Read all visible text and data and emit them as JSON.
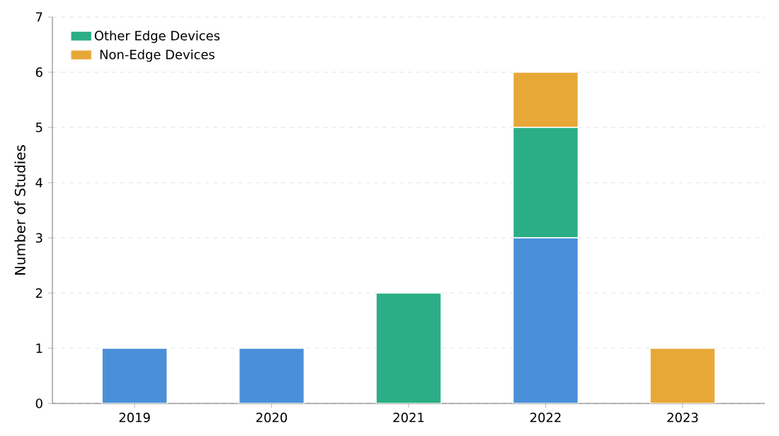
{
  "chart_data": {
    "type": "bar",
    "stacked": true,
    "ylabel": "Number of Studies",
    "categories": [
      "2019",
      "2020",
      "2021",
      "2022",
      "2023"
    ],
    "series": [
      {
        "color": "#4a90d9",
        "values": [
          1,
          1,
          0,
          3,
          0
        ]
      },
      {
        "name": "Other Edge Devices",
        "color": "#2bae85",
        "values": [
          0,
          0,
          2,
          2,
          0
        ]
      },
      {
        "name": "Non-Edge Devices",
        "color": "#e8a838",
        "values": [
          0,
          0,
          0,
          1,
          1
        ]
      }
    ],
    "ylim": [
      0,
      7
    ],
    "yticks": [
      0,
      1,
      2,
      3,
      4,
      5,
      6,
      7
    ],
    "grid": "y",
    "legend": "top left"
  }
}
